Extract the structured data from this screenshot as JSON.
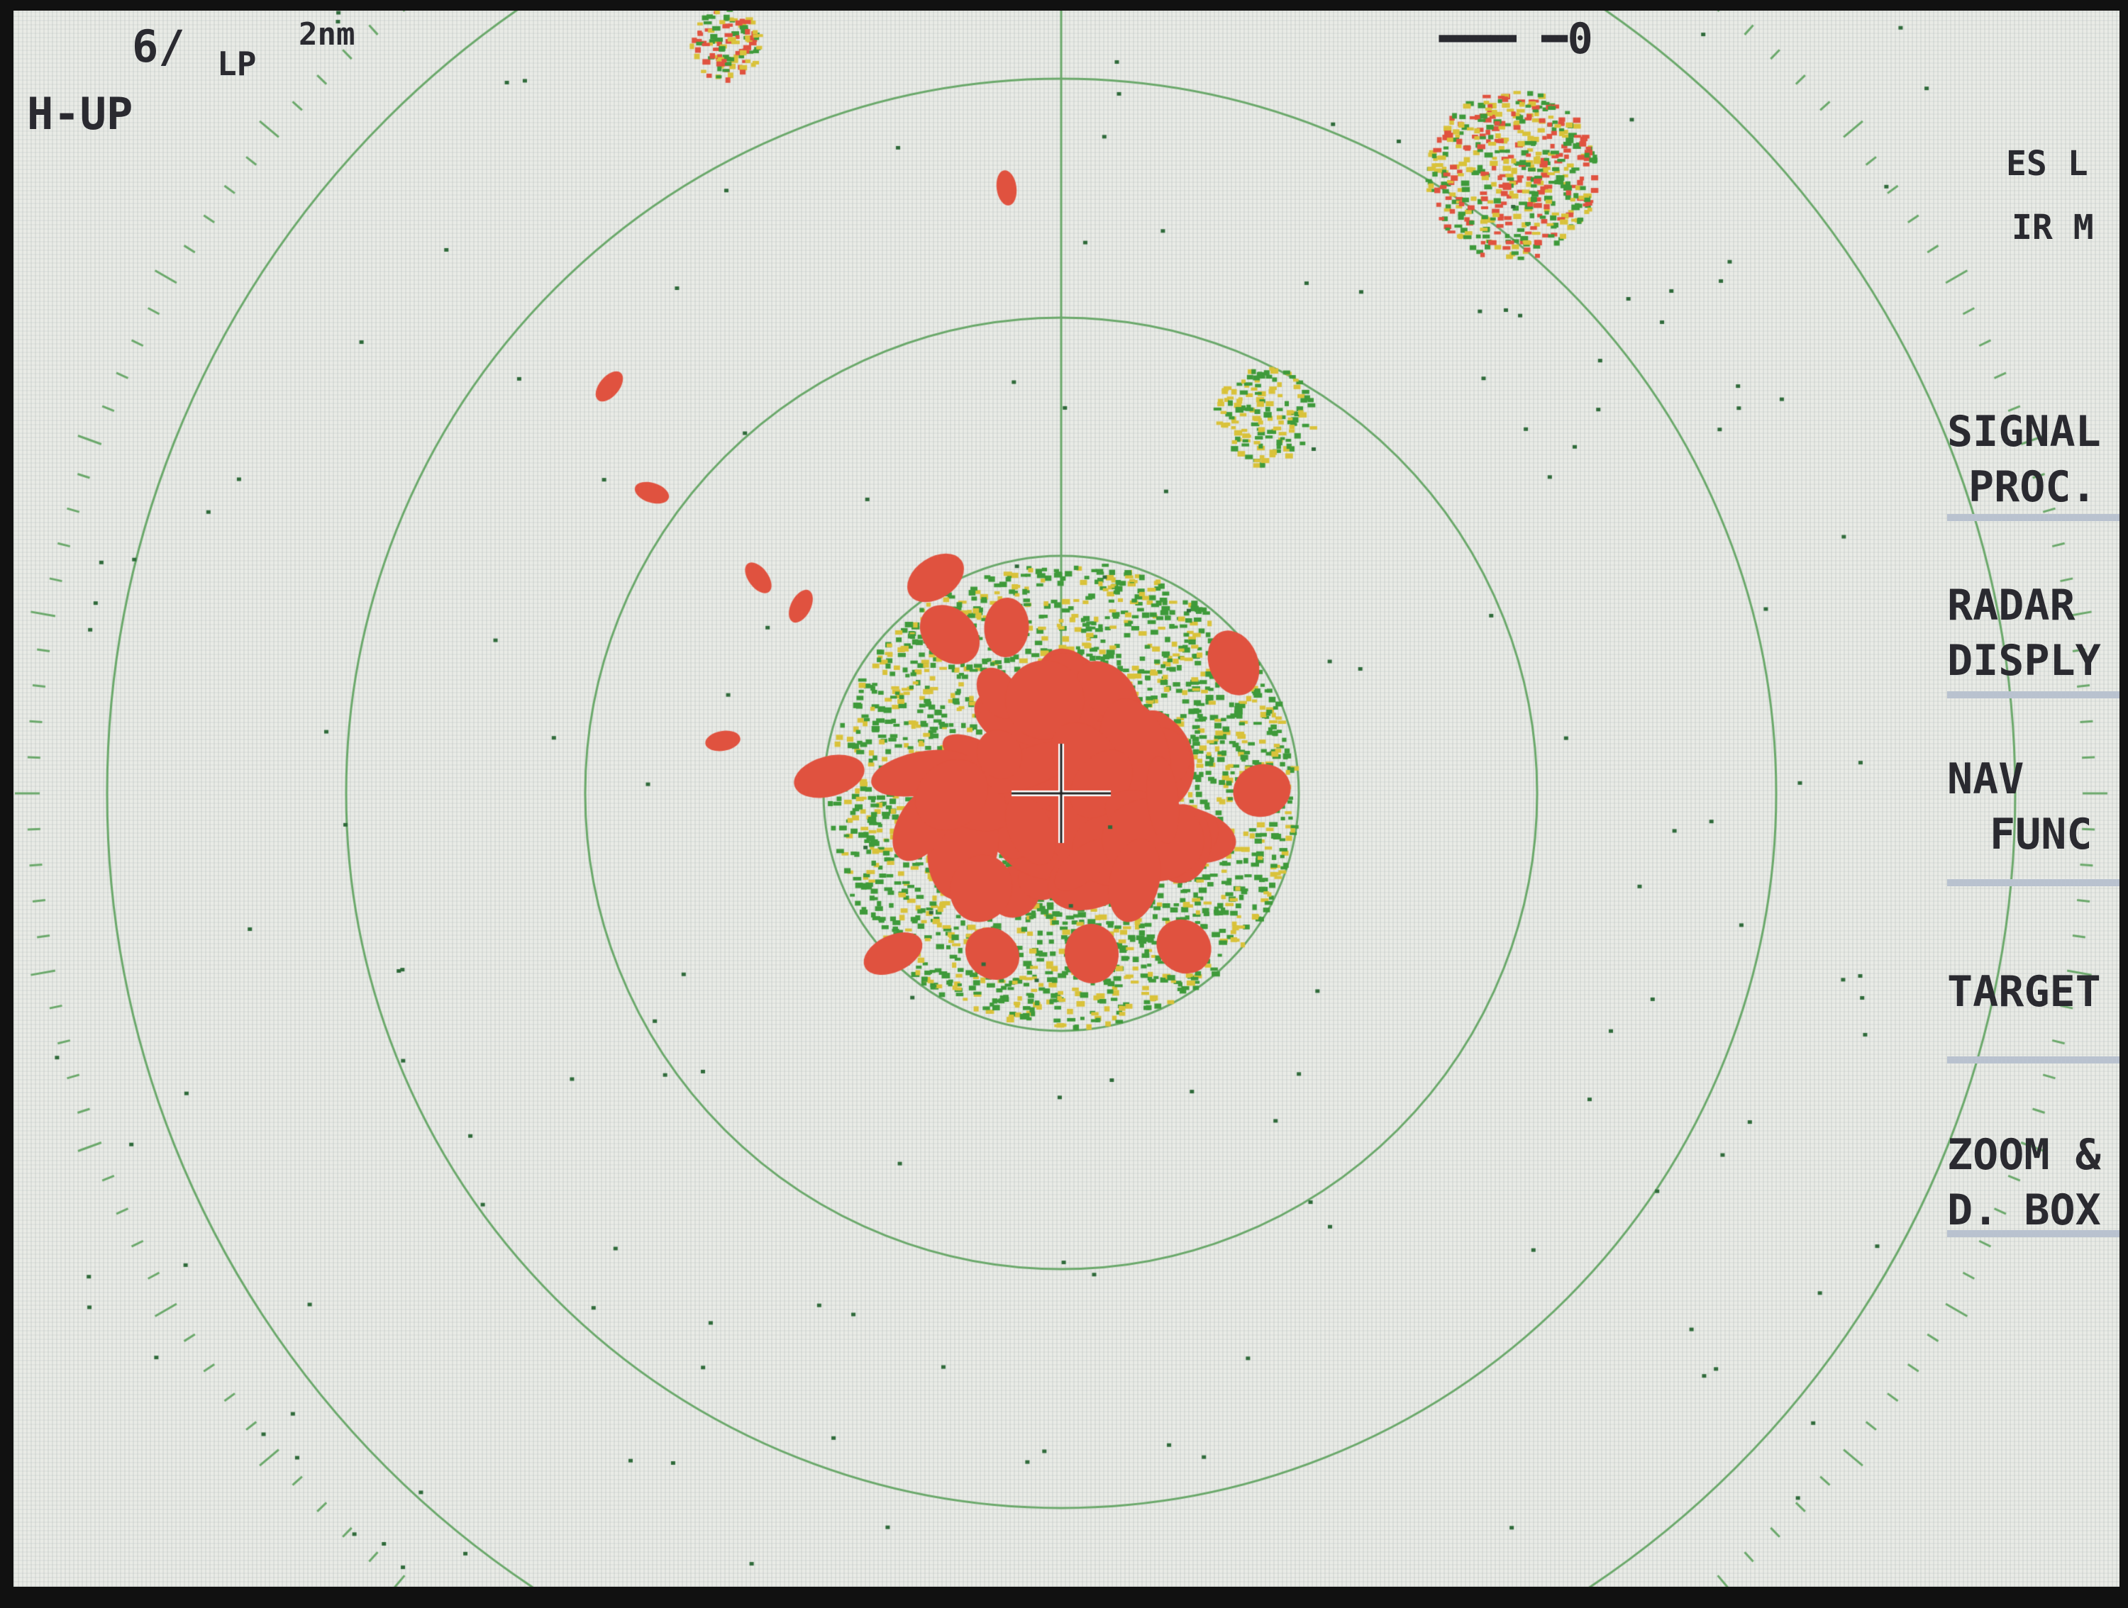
{
  "status": {
    "range_rings": "6/",
    "pulse": "LP",
    "range": "2nm",
    "orientation": "H-UP",
    "indicator": "━━━ ━0",
    "es_mode": "ES L",
    "ir_mode": "IR M"
  },
  "menu": {
    "items": [
      {
        "line1": "SIGNAL",
        "line2": "PROC."
      },
      {
        "line1": "RADAR",
        "line2": "DISPLY"
      },
      {
        "line1": "NAV",
        "line2": "FUNC"
      },
      {
        "line1": "TARGET",
        "line2": ""
      },
      {
        "line1": "ZOOM &",
        "line2": "D. BOX"
      }
    ]
  },
  "colors": {
    "background": "#e9ebe6",
    "ring": "#6aa86a",
    "echo_strong": "#e0523f",
    "echo_medium": "#d9c23a",
    "echo_weak": "#3e9a3a",
    "text": "#2a2a30"
  }
}
